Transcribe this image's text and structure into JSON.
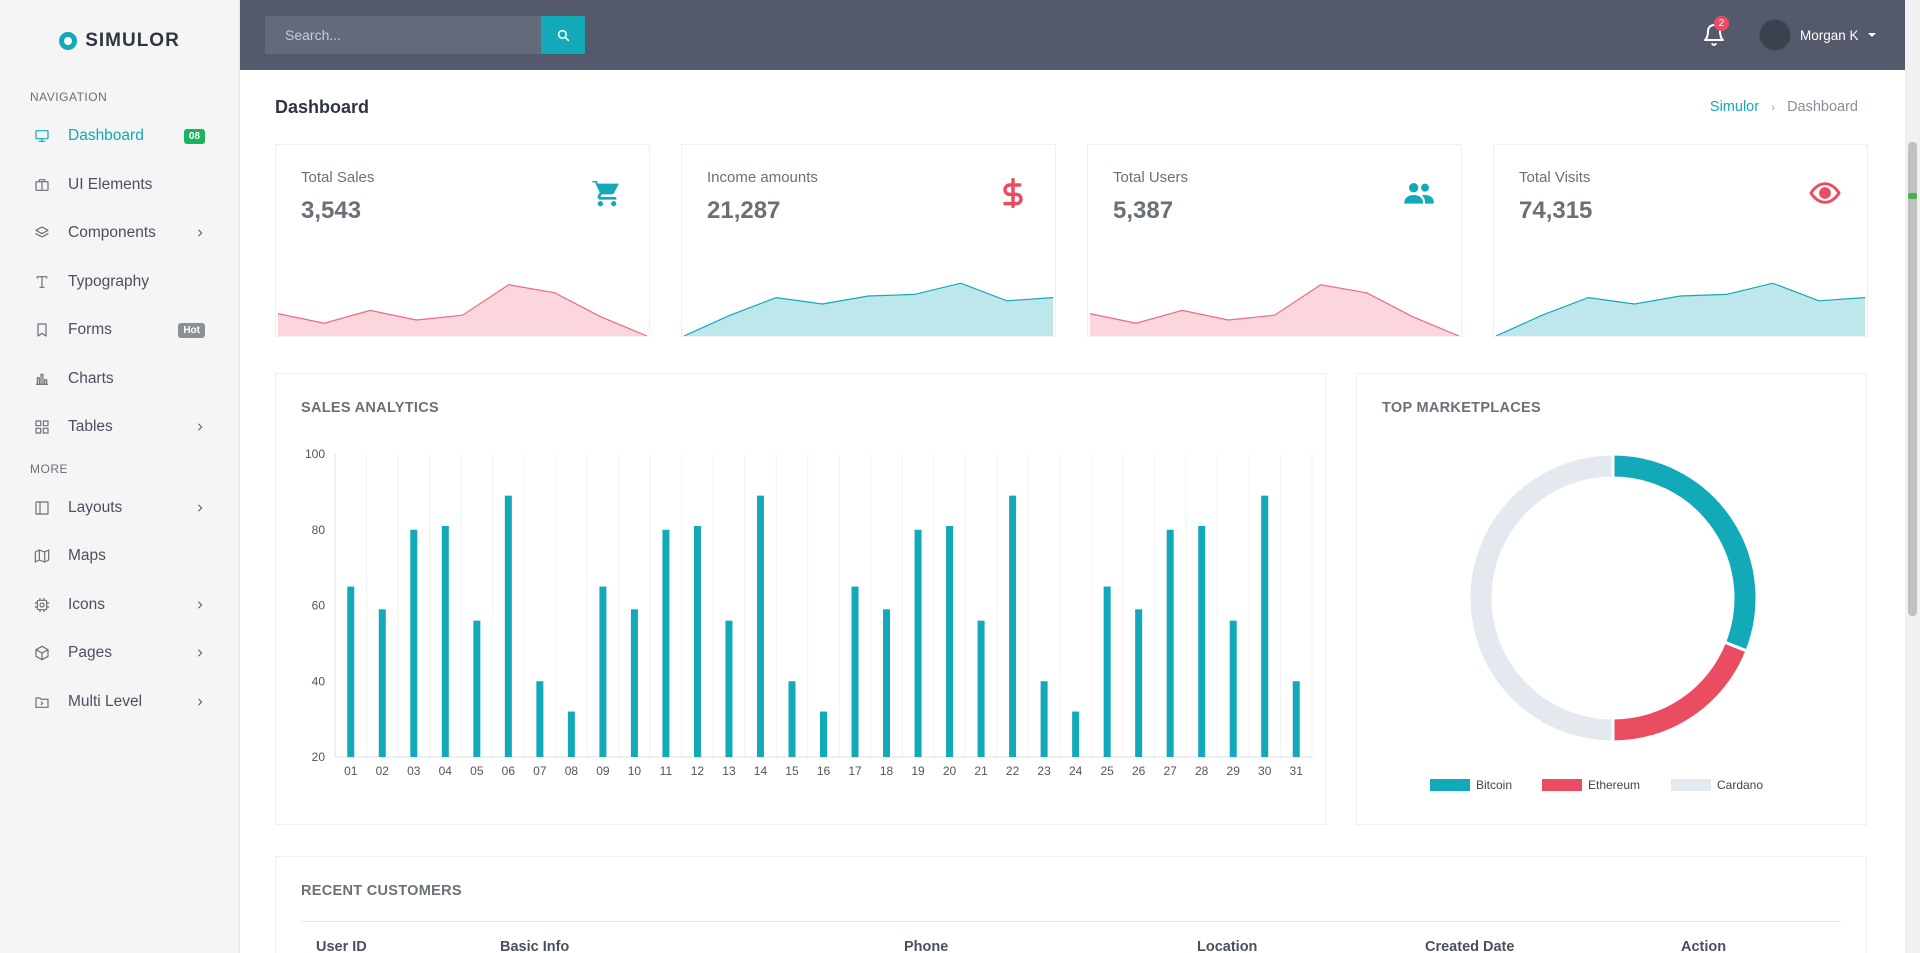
{
  "brand": {
    "name": "SIMULOR"
  },
  "sidebar": {
    "nav_heading": "NAVIGATION",
    "more_heading": "MORE",
    "items": [
      {
        "label": "Dashboard",
        "icon": "monitor-icon",
        "badge": "08",
        "badge_color": "#1bb35f",
        "active": true
      },
      {
        "label": "UI Elements",
        "icon": "briefcase-icon"
      },
      {
        "label": "Components",
        "icon": "layers-icon",
        "chevron": true
      },
      {
        "label": "Typography",
        "icon": "type-icon"
      },
      {
        "label": "Forms",
        "icon": "bookmark-icon",
        "badge": "Hot",
        "badge_color": "#8a8f98"
      },
      {
        "label": "Charts",
        "icon": "bar-chart-icon"
      },
      {
        "label": "Tables",
        "icon": "grid-icon",
        "chevron": true
      }
    ],
    "more_items": [
      {
        "label": "Layouts",
        "icon": "layout-icon",
        "chevron": true
      },
      {
        "label": "Maps",
        "icon": "map-icon"
      },
      {
        "label": "Icons",
        "icon": "cpu-icon",
        "chevron": true
      },
      {
        "label": "Pages",
        "icon": "package-icon",
        "chevron": true
      },
      {
        "label": "Multi Level",
        "icon": "folder-icon",
        "chevron": true
      }
    ]
  },
  "header": {
    "search_placeholder": "Search...",
    "notifications_count": "2",
    "user_name": "Morgan K"
  },
  "page": {
    "title": "Dashboard",
    "breadcrumb": [
      "Simulor",
      "Dashboard"
    ]
  },
  "stats": [
    {
      "title": "Total Sales",
      "value": "3,543",
      "icon": "cart-icon",
      "color": "#f06b82"
    },
    {
      "title": "Income amounts",
      "value": "21,287",
      "icon": "dollar-icon",
      "color": "#12a9b8"
    },
    {
      "title": "Total Users",
      "value": "5,387",
      "icon": "users-icon",
      "color": "#f06b82"
    },
    {
      "title": "Total Visits",
      "value": "74,315",
      "icon": "eye-icon",
      "color": "#12a9b8"
    }
  ],
  "sales_analytics": {
    "title": "SALES ANALYTICS"
  },
  "top_marketplaces": {
    "title": "TOP MARKETPLACES"
  },
  "recent_customers": {
    "title": "RECENT CUSTOMERS",
    "columns": [
      "User ID",
      "Basic Info",
      "Phone",
      "Location",
      "Created Date",
      "Action"
    ]
  },
  "chart_data": [
    {
      "type": "area",
      "x": [
        1,
        2,
        3,
        4,
        5,
        6,
        7,
        8,
        9
      ],
      "values": [
        34,
        28,
        36,
        30,
        33,
        52,
        47,
        32,
        20
      ],
      "ylim": [
        20,
        70
      ],
      "color": "#f06b82"
    },
    {
      "type": "area",
      "x": [
        1,
        2,
        3,
        4,
        5,
        6,
        7,
        8,
        9
      ],
      "values": [
        20,
        33,
        44,
        40,
        45,
        46,
        53,
        42,
        44
      ],
      "ylim": [
        20,
        70
      ],
      "color": "#12a9b8"
    },
    {
      "type": "area",
      "x": [
        1,
        2,
        3,
        4,
        5,
        6,
        7,
        8,
        9
      ],
      "values": [
        34,
        28,
        36,
        30,
        33,
        52,
        47,
        32,
        20
      ],
      "ylim": [
        20,
        70
      ],
      "color": "#f06b82"
    },
    {
      "type": "area",
      "x": [
        1,
        2,
        3,
        4,
        5,
        6,
        7,
        8,
        9
      ],
      "values": [
        20,
        33,
        44,
        40,
        45,
        46,
        53,
        42,
        44
      ],
      "ylim": [
        20,
        70
      ],
      "color": "#12a9b8"
    },
    {
      "type": "bar",
      "title": "SALES ANALYTICS",
      "categories": [
        "01",
        "02",
        "03",
        "04",
        "05",
        "06",
        "07",
        "08",
        "09",
        "10",
        "11",
        "12",
        "13",
        "14",
        "15",
        "16",
        "17",
        "18",
        "19",
        "20",
        "21",
        "22",
        "23",
        "24",
        "25",
        "26",
        "27",
        "28",
        "29",
        "30",
        "31"
      ],
      "values": [
        65,
        59,
        80,
        81,
        56,
        89,
        40,
        32,
        65,
        59,
        80,
        81,
        56,
        89,
        40,
        32,
        65,
        59,
        80,
        81,
        56,
        89,
        40,
        32,
        65,
        59,
        80,
        81,
        56,
        89,
        40
      ],
      "ylim": [
        20,
        100
      ],
      "yticks": [
        20,
        40,
        60,
        80,
        100
      ],
      "grid": true,
      "color": "#12a9b8"
    },
    {
      "type": "pie",
      "title": "TOP MARKETPLACES",
      "labels": [
        "Bitcoin",
        "Ethereum",
        "Cardano"
      ],
      "values": [
        31,
        19,
        50
      ],
      "colors": [
        "#12a9b8",
        "#ea4c62",
        "#e3e9ef"
      ],
      "legend": "bottom"
    }
  ]
}
